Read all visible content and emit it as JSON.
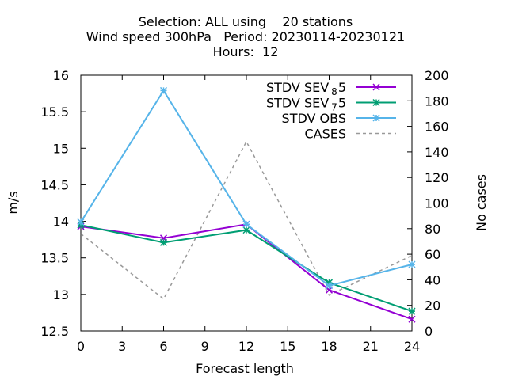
{
  "chart_data": {
    "type": "line",
    "title_lines": [
      "Selection: ALL using    20 stations",
      "Wind speed 300hPa   Period: 20230114-20230121",
      "Hours:  12"
    ],
    "xlabel": "Forecast length",
    "ylabel": "m/s",
    "y2label": "No cases",
    "x_ticks": [
      0,
      3,
      6,
      9,
      12,
      15,
      18,
      21,
      24
    ],
    "xlim": [
      0,
      24
    ],
    "ylim": [
      12.5,
      16
    ],
    "y_ticks": [
      "12.5",
      "13",
      "13.5",
      "14",
      "14.5",
      "15",
      "15.5",
      "16"
    ],
    "y2lim": [
      0,
      200
    ],
    "y2_ticks": [
      0,
      20,
      40,
      60,
      80,
      100,
      120,
      140,
      160,
      180,
      200
    ],
    "grid": false,
    "legend_position": "top-right",
    "series": [
      {
        "label_prefix": "STDV SEV",
        "label_sub": "8",
        "label_suffix": "5",
        "color": "#9400D3",
        "axis": "y",
        "x": [
          0,
          6,
          12,
          18,
          24
        ],
        "values": [
          13.93,
          13.77,
          13.96,
          13.06,
          12.66
        ]
      },
      {
        "label_prefix": "STDV SEV",
        "label_sub": "7",
        "label_suffix": "5",
        "color": "#009E73",
        "axis": "y",
        "x": [
          0,
          6,
          12,
          18,
          24
        ],
        "values": [
          13.95,
          13.71,
          13.88,
          13.16,
          12.77
        ]
      },
      {
        "label_prefix": "STDV OBS",
        "label_sub": "",
        "label_suffix": "",
        "color": "#56B4E9",
        "axis": "y",
        "x": [
          0,
          6,
          12,
          18,
          24
        ],
        "values": [
          13.99,
          15.79,
          13.96,
          13.12,
          13.41
        ]
      },
      {
        "label_prefix": "CASES",
        "label_sub": "",
        "label_suffix": "",
        "color": "#999999",
        "axis": "y2",
        "dashed": true,
        "x": [
          0,
          6,
          12,
          18,
          24
        ],
        "values": [
          76,
          25,
          148,
          28,
          59
        ]
      }
    ]
  }
}
